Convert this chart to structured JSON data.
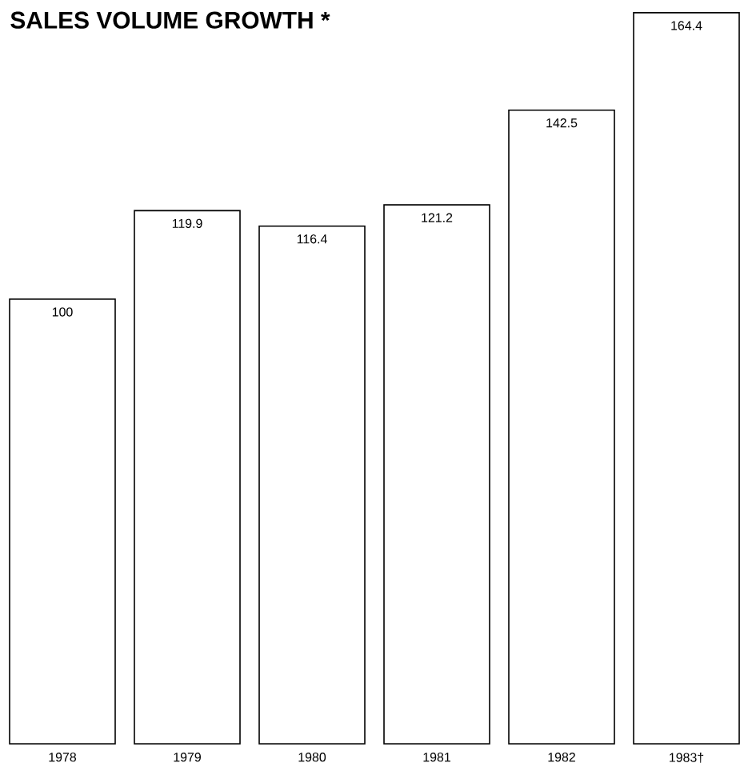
{
  "chart_data": {
    "type": "bar",
    "title": "SALES VOLUME GROWTH *",
    "categories": [
      "1978",
      "1979",
      "1980",
      "1981",
      "1982",
      "1983†"
    ],
    "values": [
      100,
      119.9,
      116.4,
      121.2,
      142.5,
      164.4
    ],
    "color": "#ffffff",
    "data_labels": true
  }
}
